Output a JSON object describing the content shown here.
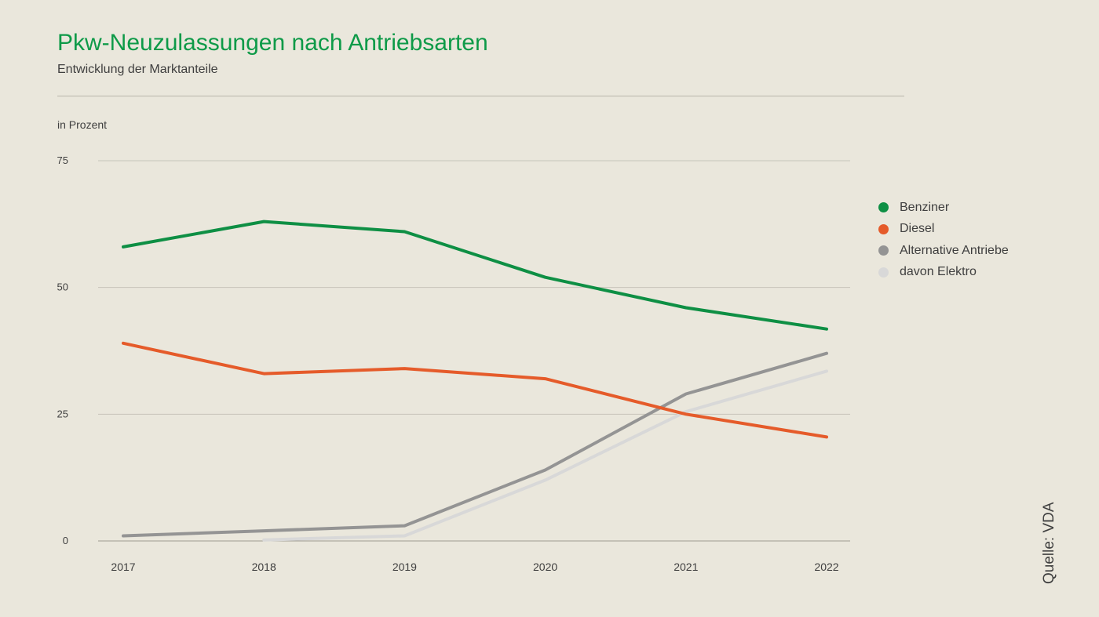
{
  "chart_data": {
    "type": "line",
    "title": "Pkw-Neuzulassungen nach Antriebsarten",
    "subtitle": "Entwicklung der Marktanteile",
    "ylabel": "in Prozent",
    "xlabel": "",
    "x": [
      "2017",
      "2018",
      "2019",
      "2020",
      "2021",
      "2022"
    ],
    "ylim": [
      0,
      75
    ],
    "yticks": [
      "0",
      "25",
      "50",
      "75"
    ],
    "grid": true,
    "legend_position": "right",
    "series": [
      {
        "name": "Benziner",
        "color": "#0e8f44",
        "values": [
          58.0,
          63.0,
          61.0,
          52.0,
          46.0,
          41.8
        ]
      },
      {
        "name": "Diesel",
        "color": "#e55b2a",
        "values": [
          39.0,
          33.0,
          34.0,
          32.0,
          25.0,
          20.5
        ]
      },
      {
        "name": "Alternative Antriebe",
        "color": "#949494",
        "values": [
          1.0,
          2.0,
          3.0,
          14.0,
          29.0,
          37.0
        ]
      },
      {
        "name": "davon Elektro",
        "color": "#d8d8d8",
        "values": [
          null,
          0.2,
          1.0,
          12.0,
          25.5,
          33.5
        ]
      }
    ],
    "source": "Quelle: VDA"
  }
}
